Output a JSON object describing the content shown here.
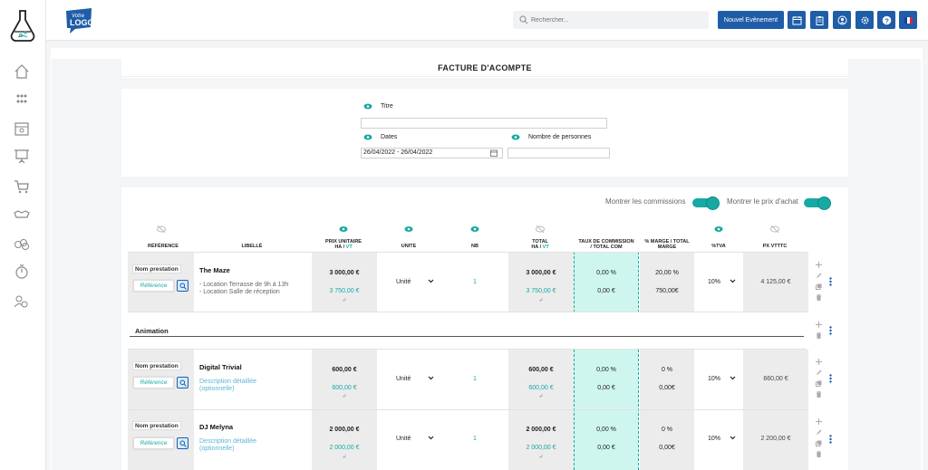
{
  "header": {
    "logo_text": "Votre LOGO",
    "search_placeholder": "Rechercher...",
    "new_event_label": "Nouvel Evènement"
  },
  "page": {
    "title": "FACTURE D'ACOMPTE"
  },
  "form": {
    "titre_label": "Titre",
    "titre_value": "",
    "dates_label": "Dates",
    "dates_value": "26/04/2022 - 26/04/2022",
    "nb_personnes_label": "Nombre de personnes",
    "nb_personnes_value": ""
  },
  "toggles": {
    "commissions_label": "Montrer les commissions",
    "prix_achat_label": "Montrer le prix d'achat"
  },
  "columns": {
    "reference": "RÉFÉRENCE",
    "libelle": "LIBELLÉ",
    "prix_unitaire": "PRIX UNITAIRE",
    "ha_vt_1": "HA",
    "ha_vt_2": "VT",
    "unite": "UNITE",
    "nb": "NB",
    "total": "TOTAL",
    "taux_1": "TAUX DE COMMISSION",
    "taux_2": "/ TOTAL COM",
    "marge_1": "% MARGE / TOTAL",
    "marge_2": "MARGE",
    "tva": "%TVA",
    "px_vtttc": "PX VTTTC"
  },
  "rows": [
    {
      "ref_label": "Nom prestation",
      "ref_placeholder": "Référence",
      "title": "The Maze",
      "desc_line1": "- Location Terrasse de 9h à 13h",
      "desc_line2": "- Location Salle de réception",
      "prix_ha": "3 000,00 €",
      "prix_vt": "3 750,00 €",
      "unite": "Unité",
      "nb": "1",
      "total_ha": "3 000,00 €",
      "total_vt": "3 750,00 €",
      "taux": "0,00 %",
      "total_com": "0,00 €",
      "marge_pct": "20,00 %",
      "marge": "750,00€",
      "tva": "10%",
      "px_vtttc": "4 125,00 €"
    },
    {
      "ref_label": "Nom prestation",
      "ref_placeholder": "Référence",
      "title": "Digital Trivial",
      "desc_line1": "Description détaillée",
      "desc_line2": "(optionnelle)",
      "prix_ha": "600,00 €",
      "prix_vt": "600,00 €",
      "unite": "Unité",
      "nb": "1",
      "total_ha": "600,00 €",
      "total_vt": "600,00 €",
      "taux": "0,00 %",
      "total_com": "0,00 €",
      "marge_pct": "0 %",
      "marge": "0,00€",
      "tva": "10%",
      "px_vtttc": "660,00 €"
    },
    {
      "ref_label": "Nom prestation",
      "ref_placeholder": "Référence",
      "title": "DJ Melyna",
      "desc_line1": "Description détaillée",
      "desc_line2": "(optionnelle)",
      "prix_ha": "2 000,00 €",
      "prix_vt": "2 000,00 €",
      "unite": "Unité",
      "nb": "1",
      "total_ha": "2 000,00 €",
      "total_vt": "2 000,00 €",
      "taux": "0,00 %",
      "total_com": "0,00 €",
      "marge_pct": "0 %",
      "marge": "0,00€",
      "tva": "10%",
      "px_vtttc": "2 200,00 €"
    }
  ],
  "section": {
    "title": "Animation"
  },
  "colors": {
    "primary": "#1f5da8",
    "teal": "#17a9a3",
    "teal_bg": "#cff6ee"
  }
}
